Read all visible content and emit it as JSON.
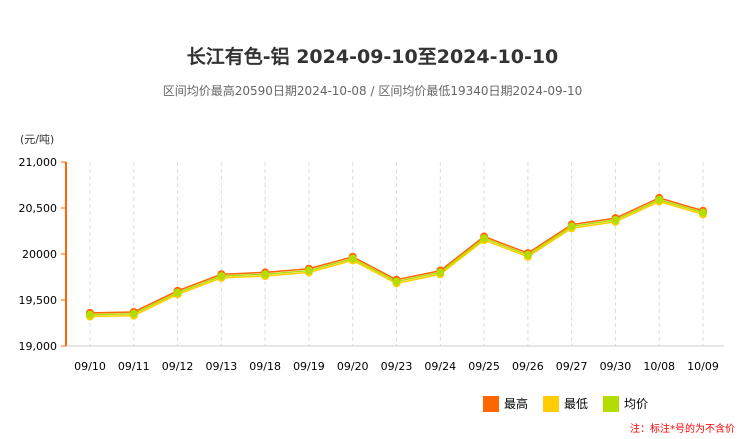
{
  "title": "长江有色-铝 2024-09-10至2024-10-10",
  "subtitle": "区间均价最高20590日期2024-10-08 / 区间均价最低19340日期2024-09-10",
  "note": "注：标注*号的为不含价",
  "chart_data": {
    "type": "line",
    "ylabel": "(元/吨)",
    "ylim": [
      19000,
      21000
    ],
    "yticks": [
      "19,000",
      "19,500",
      "20000",
      "20,500",
      "21,000"
    ],
    "ytick_values": [
      19000,
      19500,
      20000,
      20500,
      21000
    ],
    "grid": "vertical dashed",
    "legend": "bottom-right",
    "categories": [
      "09/10",
      "09/11",
      "09/12",
      "09/13",
      "09/18",
      "09/19",
      "09/20",
      "09/23",
      "09/24",
      "09/25",
      "09/26",
      "09/27",
      "09/30",
      "10/08",
      "10/09"
    ],
    "series": [
      {
        "name": "最高",
        "color": "#ff6600",
        "values": [
          19360,
          19370,
          19600,
          19780,
          19800,
          19840,
          19970,
          19720,
          19820,
          20190,
          20010,
          20320,
          20390,
          20610,
          20470
        ]
      },
      {
        "name": "最低",
        "color": "#ffcc00",
        "values": [
          19320,
          19330,
          19560,
          19740,
          19760,
          19800,
          19930,
          19680,
          19780,
          20150,
          19970,
          20280,
          20350,
          20570,
          20430
        ]
      },
      {
        "name": "均价",
        "color": "#b3dd00",
        "values": [
          19340,
          19350,
          19580,
          19760,
          19780,
          19820,
          19950,
          19700,
          19800,
          20170,
          19990,
          20300,
          20370,
          20590,
          20450
        ]
      }
    ]
  }
}
